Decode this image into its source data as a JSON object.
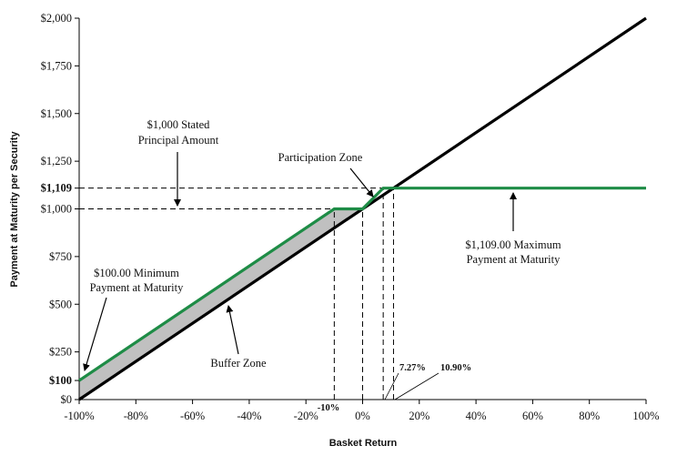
{
  "chart_data": {
    "type": "line",
    "xlabel": "Basket Return",
    "ylabel": "Payment at Maturity per Security",
    "xlim": [
      -100,
      100
    ],
    "ylim": [
      0,
      2000
    ],
    "x_ticks": [
      -100,
      -80,
      -60,
      -40,
      -20,
      0,
      20,
      40,
      60,
      80,
      100
    ],
    "x_tick_labels": [
      "-100%",
      "-80%",
      "-60%",
      "-40%",
      "-20%",
      "0%",
      "20%",
      "40%",
      "60%",
      "80%",
      "100%"
    ],
    "y_ticks": [
      0,
      250,
      500,
      750,
      1000,
      1250,
      1500,
      1750,
      2000
    ],
    "y_tick_labels": [
      "$0",
      "$250",
      "$500",
      "$750",
      "$1,000",
      "$1,250",
      "$1,500",
      "$1,750",
      "$2,000"
    ],
    "extra_y_ticks": [
      {
        "value": 100,
        "label": "$100"
      },
      {
        "value": 1109,
        "label": "$1,109"
      }
    ],
    "series": [
      {
        "color": "#1e8c46",
        "points": [
          [
            -100,
            100
          ],
          [
            -10,
            1000
          ],
          [
            0,
            1000
          ],
          [
            7.27,
            1109
          ],
          [
            100,
            1109
          ]
        ]
      },
      {
        "color": "#000000",
        "points": [
          [
            -100,
            0
          ],
          [
            100,
            2000
          ]
        ]
      }
    ],
    "shaded_region": {
      "color": "#c0c0c0",
      "polygon": [
        [
          -100,
          100
        ],
        [
          -10,
          1000
        ],
        [
          0,
          1000
        ],
        [
          -100,
          0
        ]
      ]
    },
    "reference_lines": [
      {
        "orient": "h",
        "y": 1109,
        "x_from": -100,
        "x_to": 10.9
      },
      {
        "orient": "h",
        "y": 1000,
        "x_from": -100,
        "x_to": 0
      },
      {
        "orient": "v",
        "x": -10,
        "y_from": 0,
        "y_to": 1000
      },
      {
        "orient": "v",
        "x": 0,
        "y_from": 0,
        "y_to": 1000
      },
      {
        "orient": "v",
        "x": 7.27,
        "y_from": 0,
        "y_to": 1109
      },
      {
        "orient": "v",
        "x": 10.9,
        "y_from": 0,
        "y_to": 1109
      }
    ],
    "annotations": {
      "stated_principal": [
        "$1,000 Stated",
        "Principal Amount"
      ],
      "participation_zone": "Participation Zone",
      "max_payment": [
        "$1,109.00 Maximum",
        "Payment at Maturity"
      ],
      "min_payment": [
        "$100.00 Minimum",
        "Payment at Maturity"
      ],
      "buffer_zone": "Buffer Zone",
      "buffer_pct": "-10%",
      "cap_pct_1": "7.27%",
      "cap_pct_2": "10.90%"
    }
  }
}
